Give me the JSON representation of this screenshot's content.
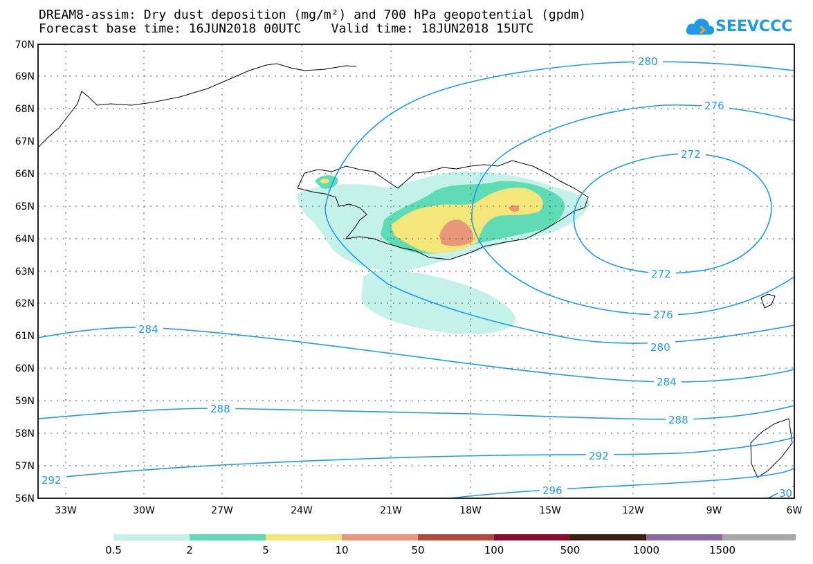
{
  "title": {
    "line1": "DREAM8-assim: Dry dust deposition (mg/m²) and 700 hPa geopotential (gpdm)",
    "line2": "Forecast base time: 16JUN2018 00UTC    Valid time: 18JUN2018 15UTC"
  },
  "logo": {
    "text": "SEEVCCC",
    "icon": "cloud-icon",
    "color": "#1e9be8"
  },
  "map": {
    "lat_labels": [
      "70N",
      "69N",
      "68N",
      "67N",
      "66N",
      "65N",
      "64N",
      "63N",
      "62N",
      "61N",
      "60N",
      "59N",
      "58N",
      "57N",
      "56N"
    ],
    "lon_labels": [
      "33W",
      "30W",
      "27W",
      "24W",
      "21W",
      "18W",
      "15W",
      "12W",
      "9W",
      "6W"
    ],
    "contour_color": "#1e9be8",
    "contour_labels": [
      "280",
      "276",
      "272",
      "272",
      "276",
      "280",
      "284",
      "284",
      "288",
      "288",
      "292",
      "292",
      "296",
      "30"
    ]
  },
  "legend": {
    "colors": [
      "#c4f2ea",
      "#5fdcb6",
      "#f5e67a",
      "#e8977a",
      "#b04a3c",
      "#8c0a2a",
      "#3c2010",
      "#8c6aa0",
      "#a8a8a8"
    ],
    "labels": [
      "0.5",
      "2",
      "5",
      "10",
      "50",
      "100",
      "500",
      "1000",
      "1500"
    ]
  }
}
